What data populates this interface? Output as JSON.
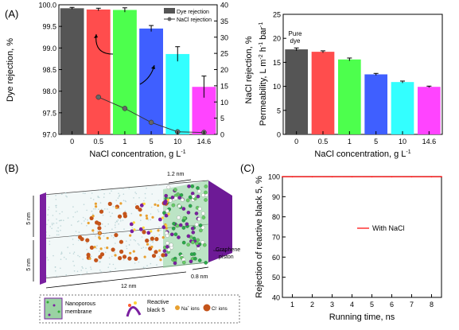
{
  "panels": {
    "a": "(A)",
    "b": "(B)",
    "c": "(C)"
  },
  "colors": {
    "bars": [
      "#555555",
      "#ff4d4d",
      "#4dff4d",
      "#3f5fff",
      "#33ffff",
      "#ff44ff"
    ],
    "nacl_line": "#333333",
    "nacl_marker": "#666666",
    "with_nacl": "#ff0000"
  },
  "chart_data": [
    {
      "type": "bar",
      "categories": [
        "0",
        "0.5",
        "1",
        "5",
        "10",
        "14.6"
      ],
      "series": [
        {
          "name": "Dye rejection",
          "axis": "left",
          "values": [
            99.92,
            99.89,
            99.88,
            99.45,
            98.86,
            98.1
          ],
          "errors": [
            0.02,
            0.03,
            0.05,
            0.07,
            0.17,
            0.25
          ]
        },
        {
          "name": "NaCl rejection",
          "axis": "right",
          "type": "line",
          "values": [
            null,
            11.5,
            8.0,
            3.7,
            0.8,
            0.6
          ]
        }
      ],
      "xlabel": "NaCl concentration, g L",
      "xlabel_sup": "-1",
      "ylabel": "Dye rejection, %",
      "ylabel_right": "NaCl rejection, %",
      "ylim": [
        97.0,
        100.0
      ],
      "yticks": [
        "97.0",
        "97.5",
        "98.0",
        "98.5",
        "99.0",
        "99.5",
        "100.0"
      ],
      "ylim_right": [
        0,
        40
      ],
      "yticks_right": [
        "0",
        "5",
        "10",
        "15",
        "20",
        "25",
        "30",
        "35",
        "40"
      ],
      "legend_position": "top-right"
    },
    {
      "type": "bar",
      "categories": [
        "0",
        "0.5",
        "1",
        "5",
        "10",
        "14.6"
      ],
      "values": [
        17.7,
        17.2,
        15.6,
        12.5,
        10.9,
        9.9
      ],
      "errors": [
        0.3,
        0.2,
        0.3,
        0.2,
        0.2,
        0.15
      ],
      "annotation": [
        "Pure",
        "dye"
      ],
      "xlabel": "NaCl concentration, g L",
      "xlabel_sup": "-1",
      "ylabel": "Permeability, L m",
      "ylabel_parts": [
        "Permeability, L m",
        "-2",
        " h",
        "-1",
        " bar",
        "-1"
      ],
      "ylim": [
        0,
        25
      ],
      "yticks": [
        "0",
        "5",
        "10",
        "15",
        "20",
        "25"
      ]
    },
    {
      "type": "line",
      "x": [
        0.5,
        1,
        2,
        3,
        4,
        5,
        6,
        7,
        8,
        8.5
      ],
      "series": [
        {
          "name": "With NaCl",
          "values": [
            99.9,
            99.9,
            99.9,
            99.9,
            99.9,
            99.9,
            99.9,
            99.9,
            99.9,
            99.9
          ]
        }
      ],
      "xlabel": "Running time, ns",
      "ylabel": "Rejection of reactive black 5, %",
      "xlim": [
        0.5,
        8.5
      ],
      "xticks": [
        "1",
        "2",
        "3",
        "4",
        "5",
        "6",
        "7",
        "8"
      ],
      "ylim": [
        40,
        100
      ],
      "yticks": [
        "40",
        "50",
        "60",
        "70",
        "80",
        "90",
        "100"
      ],
      "legend_position": "center-right"
    }
  ],
  "diagram": {
    "dims": [
      "1.2 nm",
      "5 nm",
      "5 nm",
      "12 nm",
      "0.8 nm"
    ],
    "piston_label": [
      "Graphene",
      "piston"
    ],
    "legend": {
      "membrane": [
        "Nanoporous",
        "membrane"
      ],
      "dye": [
        "Reactive",
        "black 5"
      ],
      "na": "Na",
      "na_sup": "+",
      "na_tail": " ions",
      "cl": "Cl",
      "cl_sup": "-",
      "cl_tail": " ions"
    }
  }
}
